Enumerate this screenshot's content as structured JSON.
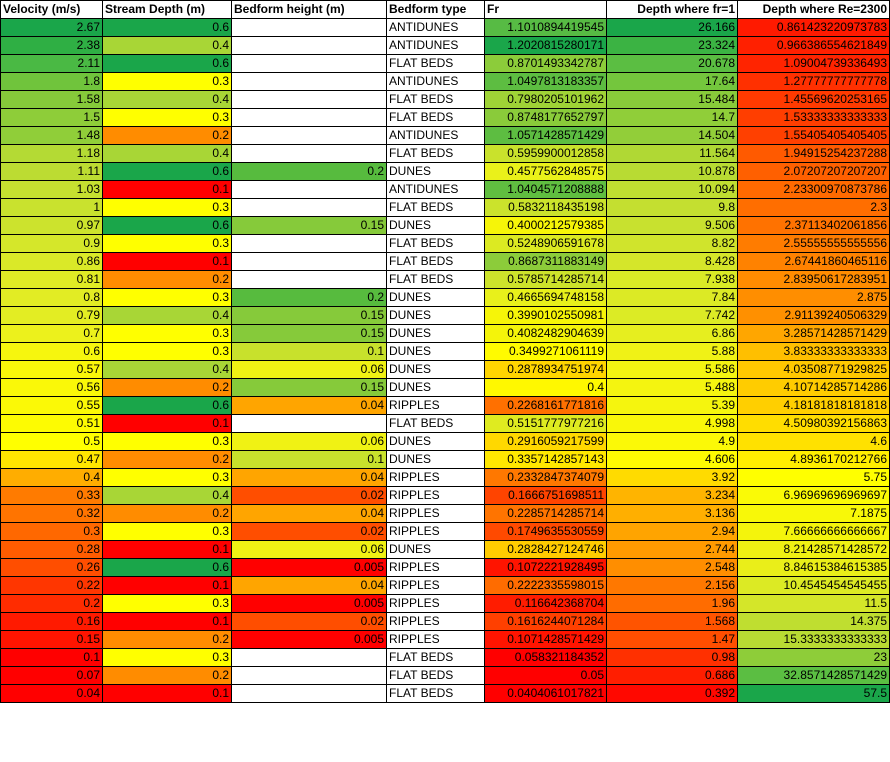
{
  "sheet": {
    "headers": [
      "Velocity (m/s)",
      "Stream Depth (m)",
      "Bedform height (m)",
      "Bedform type",
      "Fr",
      "Depth where fr=1",
      "Depth where Re=2300"
    ],
    "rows": [
      {
        "cells": [
          "2.67",
          "0.6",
          "",
          "ANTIDUNES",
          "1.1010894419545",
          "26.166",
          "0.861423220973783"
        ],
        "colors": [
          "#1aa64a",
          "#1aa64a",
          "#ffffff",
          "#ffffff",
          "#57bb44",
          "#1aa64a",
          "#ff1a00"
        ]
      },
      {
        "cells": [
          "2.38",
          "0.4",
          "",
          "ANTIDUNES",
          "1.2020815280171",
          "23.324",
          "0.966386554621849"
        ],
        "colors": [
          "#2faf44",
          "#a8d636",
          "#ffffff",
          "#ffffff",
          "#1aa64a",
          "#3bb343",
          "#ff2000"
        ]
      },
      {
        "cells": [
          "2.11",
          "0.6",
          "",
          "FLAT BEDS",
          "0.8701493342787",
          "20.678",
          "1.09004739336493"
        ],
        "colors": [
          "#4ab944",
          "#1aa64a",
          "#ffffff",
          "#ffffff",
          "#8ccc3a",
          "#5bbe42",
          "#ff2400"
        ]
      },
      {
        "cells": [
          "1.8",
          "0.3",
          "",
          "ANTIDUNES",
          "1.0497813183357",
          "17.64",
          "1.27777777777778"
        ],
        "colors": [
          "#70c43c",
          "#ffff00",
          "#ffffff",
          "#ffffff",
          "#5dbd41",
          "#74c63d",
          "#ff3000"
        ]
      },
      {
        "cells": [
          "1.58",
          "0.4",
          "",
          "FLAT BEDS",
          "0.7980205101962",
          "15.484",
          "1.45569620253165"
        ],
        "colors": [
          "#86ca3a",
          "#a8d636",
          "#ffffff",
          "#ffffff",
          "#9fd336",
          "#88cb3a",
          "#ff3a00"
        ]
      },
      {
        "cells": [
          "1.5",
          "0.3",
          "",
          "FLAT BEDS",
          "0.8748177652797",
          "14.7",
          "1.53333333333333"
        ],
        "colors": [
          "#8ecd39",
          "#ffff00",
          "#ffffff",
          "#ffffff",
          "#8acb3a",
          "#90ce39",
          "#ff3e00"
        ]
      },
      {
        "cells": [
          "1.48",
          "0.2",
          "",
          "ANTIDUNES",
          "1.0571428571429",
          "14.504",
          "1.55405405405405"
        ],
        "colors": [
          "#90ce39",
          "#ff8c00",
          "#ffffff",
          "#ffffff",
          "#5dbd41",
          "#92ce39",
          "#ff4000"
        ]
      },
      {
        "cells": [
          "1.18",
          "0.4",
          "",
          "FLAT BEDS",
          "0.5959900012858",
          "11.564",
          "1.94915254237288"
        ],
        "colors": [
          "#b4da34",
          "#a8d636",
          "#ffffff",
          "#ffffff",
          "#c9e22c",
          "#b0d834",
          "#ff5a00"
        ]
      },
      {
        "cells": [
          "1.11",
          "0.6",
          "0.2",
          "DUNES",
          "0.4577562848575",
          "10.878",
          "2.07207207207207"
        ],
        "colors": [
          "#bcdc32",
          "#1aa64a",
          "#57bb3e",
          "#ffffff",
          "#eaf11a",
          "#b8db33",
          "#ff6000"
        ]
      },
      {
        "cells": [
          "1.03",
          "0.1",
          "",
          "ANTIDUNES",
          "1.0404571208888",
          "10.094",
          "2.23300970873786"
        ],
        "colors": [
          "#c6e030",
          "#ff0000",
          "#ffffff",
          "#ffffff",
          "#60be40",
          "#c0de31",
          "#ff6a00"
        ]
      },
      {
        "cells": [
          "1",
          "0.3",
          "",
          "FLAT BEDS",
          "0.5832118435198",
          "9.8",
          "2.3"
        ],
        "colors": [
          "#c9e22e",
          "#ffff00",
          "#ffffff",
          "#ffffff",
          "#cbe32c",
          "#c4df30",
          "#ff6e00"
        ]
      },
      {
        "cells": [
          "0.97",
          "0.6",
          "0.15",
          "DUNES",
          "0.4000212579385",
          "9.506",
          "2.37113402061856"
        ],
        "colors": [
          "#cce32d",
          "#1aa64a",
          "#86ca3a",
          "#ffffff",
          "#f6f508",
          "#c8e12f",
          "#ff7200"
        ]
      },
      {
        "cells": [
          "0.9",
          "0.3",
          "",
          "FLAT BEDS",
          "0.5248906591678",
          "8.82",
          "2.55555555555556"
        ],
        "colors": [
          "#d5e72a",
          "#ffff00",
          "#ffffff",
          "#ffffff",
          "#dcea22",
          "#d0e42c",
          "#ff7c00"
        ]
      },
      {
        "cells": [
          "0.86",
          "0.1",
          "",
          "FLAT BEDS",
          "0.8687311883149",
          "8.428",
          "2.67441860465116"
        ],
        "colors": [
          "#dae928",
          "#ff0000",
          "#ffffff",
          "#ffffff",
          "#8ccc3a",
          "#d5e62a",
          "#ff8200"
        ]
      },
      {
        "cells": [
          "0.81",
          "0.2",
          "",
          "FLAT BEDS",
          "0.5785714285714",
          "7.938",
          "2.83950617283951"
        ],
        "colors": [
          "#e0eb25",
          "#ff8c00",
          "#ffffff",
          "#ffffff",
          "#cde32b",
          "#daea26",
          "#ff8c00"
        ]
      },
      {
        "cells": [
          "0.8",
          "0.3",
          "0.2",
          "DUNES",
          "0.4665694748158",
          "7.84",
          "2.875"
        ],
        "colors": [
          "#e2ec24",
          "#ffff00",
          "#57bb3e",
          "#ffffff",
          "#e8f01b",
          "#dcea25",
          "#ff8e00"
        ]
      },
      {
        "cells": [
          "0.79",
          "0.4",
          "0.15",
          "DUNES",
          "0.3990102550981",
          "7.742",
          "2.91139240506329"
        ],
        "colors": [
          "#e3ed23",
          "#a8d636",
          "#86ca3a",
          "#ffffff",
          "#f6f508",
          "#dceb25",
          "#ff9000"
        ]
      },
      {
        "cells": [
          "0.7",
          "0.3",
          "0.15",
          "DUNES",
          "0.4082482904639",
          "6.86",
          "3.28571428571429"
        ],
        "colors": [
          "#ecf11c",
          "#ffff00",
          "#86ca3a",
          "#ffffff",
          "#f4f40a",
          "#e6ee1f",
          "#ffa600"
        ]
      },
      {
        "cells": [
          "0.6",
          "0.3",
          "0.1",
          "DUNES",
          "0.3499271061119",
          "5.88",
          "3.83333333333333"
        ],
        "colors": [
          "#f6f60e",
          "#ffff00",
          "#c8e12c",
          "#ffffff",
          "#fffb00",
          "#f0f216",
          "#ffbf00"
        ]
      },
      {
        "cells": [
          "0.57",
          "0.4",
          "0.06",
          "DUNES",
          "0.2878934751974",
          "5.586",
          "4.03508771929825"
        ],
        "colors": [
          "#f9f70a",
          "#a8d636",
          "#f0f214",
          "#ffffff",
          "#ffd500",
          "#f3f412",
          "#ffc800"
        ]
      },
      {
        "cells": [
          "0.56",
          "0.2",
          "0.15",
          "DUNES",
          "0.4",
          "5.488",
          "4.10714285714286"
        ],
        "colors": [
          "#faf808",
          "#ff8c00",
          "#86ca3a",
          "#ffffff",
          "#fff800",
          "#f4f410",
          "#ffcc00"
        ]
      },
      {
        "cells": [
          "0.55",
          "0.6",
          "0.04",
          "RIPPLES",
          "0.2268161771816",
          "5.39",
          "4.18181818181818"
        ],
        "colors": [
          "#fbf906",
          "#1aa64a",
          "#ffa500",
          "#ffffff",
          "#ff7000",
          "#f5f50e",
          "#ffcf00"
        ]
      },
      {
        "cells": [
          "0.51",
          "0.1",
          "",
          "FLAT BEDS",
          "0.5151777977216",
          "4.998",
          "4.50980392156863"
        ],
        "colors": [
          "#fdfb02",
          "#ff0000",
          "#ffffff",
          "#ffffff",
          "#dfeb20",
          "#f9f709",
          "#ffdd00"
        ]
      },
      {
        "cells": [
          "0.5",
          "0.3",
          "0.06",
          "DUNES",
          "0.2916059217599",
          "4.9",
          "4.6"
        ],
        "colors": [
          "#ffff00",
          "#ffff00",
          "#f0f214",
          "#ffffff",
          "#ffd800",
          "#fbf907",
          "#ffe100"
        ]
      },
      {
        "cells": [
          "0.47",
          "0.2",
          "0.1",
          "DUNES",
          "0.3357142857143",
          "4.606",
          "4.8936170212766"
        ],
        "colors": [
          "#ffe600",
          "#ff8c00",
          "#c8e12c",
          "#ffffff",
          "#ffe800",
          "#fefb02",
          "#ffee00"
        ]
      },
      {
        "cells": [
          "0.4",
          "0.3",
          "0.04",
          "RIPPLES",
          "0.2332847374079",
          "3.92",
          "5.75"
        ],
        "colors": [
          "#ffad00",
          "#ffff00",
          "#ffa500",
          "#ffffff",
          "#ff7800",
          "#ffdb00",
          "#ffff00"
        ]
      },
      {
        "cells": [
          "0.33",
          "0.4",
          "0.02",
          "RIPPLES",
          "0.1666751698511",
          "3.234",
          "6.96969696969697"
        ],
        "colors": [
          "#ff7b00",
          "#a8d636",
          "#ff4e00",
          "#ffffff",
          "#ff4400",
          "#ffb400",
          "#fafa06"
        ]
      },
      {
        "cells": [
          "0.32",
          "0.2",
          "0.04",
          "RIPPLES",
          "0.2285714285714",
          "3.136",
          "7.1875"
        ],
        "colors": [
          "#ff7400",
          "#ff8c00",
          "#ffa500",
          "#ffffff",
          "#ff7400",
          "#ffaf00",
          "#f8f808"
        ]
      },
      {
        "cells": [
          "0.3",
          "0.3",
          "0.02",
          "RIPPLES",
          "0.1749635530559",
          "2.94",
          "7.66666666666667"
        ],
        "colors": [
          "#ff6800",
          "#ffff00",
          "#ff4e00",
          "#ffffff",
          "#ff4a00",
          "#ffa400",
          "#f4f40c"
        ]
      },
      {
        "cells": [
          "0.28",
          "0.1",
          "0.06",
          "DUNES",
          "0.2828427124746",
          "2.744",
          "8.21428571428572"
        ],
        "colors": [
          "#ff5c00",
          "#ff0000",
          "#f0f214",
          "#ffffff",
          "#ffcc00",
          "#ff9a00",
          "#eff013"
        ]
      },
      {
        "cells": [
          "0.26",
          "0.6",
          "0.005",
          "RIPPLES",
          "0.1072221928495",
          "2.548",
          "8.84615384615385"
        ],
        "colors": [
          "#ff4e00",
          "#1aa64a",
          "#ff0000",
          "#ffffff",
          "#ff1400",
          "#ff8e00",
          "#eaee19"
        ]
      },
      {
        "cells": [
          "0.22",
          "0.1",
          "0.04",
          "RIPPLES",
          "0.2222335598015",
          "2.156",
          "10.4545454545455"
        ],
        "colors": [
          "#ff3600",
          "#ff0000",
          "#ffa500",
          "#ffffff",
          "#ff6c00",
          "#ff7800",
          "#dcea24"
        ]
      },
      {
        "cells": [
          "0.2",
          "0.3",
          "0.005",
          "RIPPLES",
          "0.116642368704",
          "1.96",
          "11.5"
        ],
        "colors": [
          "#ff2c00",
          "#ffff00",
          "#ff0000",
          "#ffffff",
          "#ff1c00",
          "#ff6c00",
          "#d4e629"
        ]
      },
      {
        "cells": [
          "0.16",
          "0.1",
          "0.02",
          "RIPPLES",
          "0.1616244071284",
          "1.568",
          "14.375"
        ],
        "colors": [
          "#ff1a00",
          "#ff0000",
          "#ff4e00",
          "#ffffff",
          "#ff4000",
          "#ff5400",
          "#bfde30"
        ]
      },
      {
        "cells": [
          "0.15",
          "0.2",
          "0.005",
          "RIPPLES",
          "0.1071428571429",
          "1.47",
          "15.3333333333333"
        ],
        "colors": [
          "#ff1400",
          "#ff8c00",
          "#ff0000",
          "#ffffff",
          "#ff1400",
          "#ff4e00",
          "#b8db33"
        ]
      },
      {
        "cells": [
          "0.1",
          "0.3",
          "",
          "FLAT BEDS",
          "0.058321184352",
          "0.98",
          "23"
        ],
        "colors": [
          "#ff0000",
          "#ffff00",
          "#ffffff",
          "#ffffff",
          "#ff0000",
          "#ff3000",
          "#8ecd39"
        ]
      },
      {
        "cells": [
          "0.07",
          "0.2",
          "",
          "FLAT BEDS",
          "0.05",
          "0.686",
          "32.8571428571429"
        ],
        "colors": [
          "#ff0000",
          "#ff8c00",
          "#ffffff",
          "#ffffff",
          "#ff0000",
          "#ff1e00",
          "#5bbe42"
        ]
      },
      {
        "cells": [
          "0.04",
          "0.1",
          "",
          "FLAT BEDS",
          "0.0404061017821",
          "0.392",
          "57.5"
        ],
        "colors": [
          "#ff0000",
          "#ff0000",
          "#ffffff",
          "#ffffff",
          "#ff0000",
          "#ff0800",
          "#1aa64a"
        ]
      }
    ]
  }
}
